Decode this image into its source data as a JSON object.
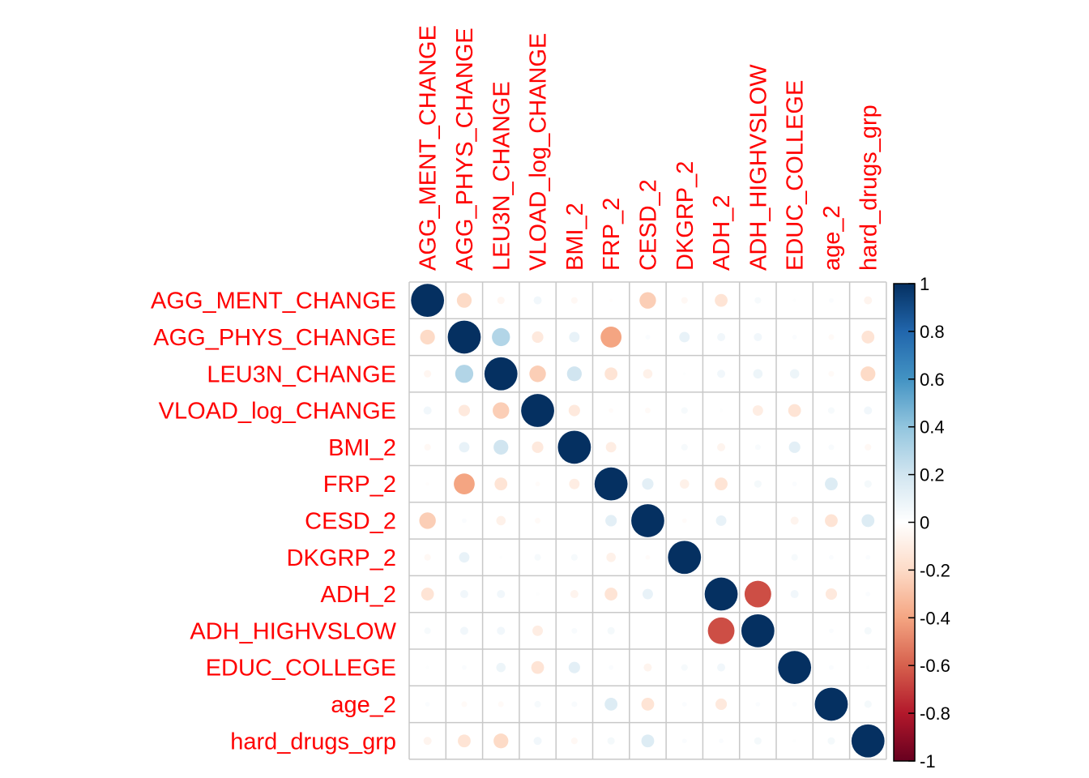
{
  "chart_data": {
    "type": "heatmap",
    "subtype": "correlation-circles",
    "title": "",
    "label_color": "#ff0000",
    "grid_color": "#c8c8c8",
    "variables": [
      "AGG_MENT_CHANGE",
      "AGG_PHYS_CHANGE",
      "LEU3N_CHANGE",
      "VLOAD_log_CHANGE",
      "BMI_2",
      "FRP_2",
      "CESD_2",
      "DKGRP_2",
      "ADH_2",
      "ADH_HIGHVSLOW",
      "EDUC_COLLEGE",
      "age_2",
      "hard_drugs_grp"
    ],
    "matrix": [
      [
        1.0,
        -0.2,
        -0.05,
        0.06,
        -0.04,
        -0.01,
        -0.25,
        -0.04,
        -0.15,
        0.04,
        0.01,
        0.02,
        -0.06
      ],
      [
        -0.2,
        1.0,
        0.3,
        -0.12,
        0.1,
        -0.4,
        0.02,
        0.1,
        0.06,
        0.06,
        0.02,
        -0.03,
        -0.15
      ],
      [
        -0.05,
        0.3,
        1.0,
        -0.25,
        0.2,
        -0.15,
        -0.08,
        0.01,
        0.06,
        0.08,
        0.08,
        -0.03,
        -0.2
      ],
      [
        0.06,
        -0.12,
        -0.25,
        1.0,
        -0.12,
        -0.02,
        -0.03,
        0.04,
        0.01,
        -0.1,
        -0.15,
        0.04,
        0.06
      ],
      [
        -0.04,
        0.1,
        0.2,
        -0.12,
        1.0,
        -0.1,
        0.0,
        0.04,
        -0.06,
        0.03,
        0.12,
        0.03,
        -0.04
      ],
      [
        -0.01,
        -0.4,
        -0.15,
        -0.02,
        -0.1,
        1.0,
        0.12,
        -0.08,
        -0.15,
        0.05,
        0.02,
        0.15,
        0.05
      ],
      [
        -0.25,
        0.02,
        -0.08,
        -0.03,
        0.0,
        0.12,
        1.0,
        -0.02,
        0.1,
        0.0,
        -0.06,
        -0.15,
        0.15
      ],
      [
        -0.04,
        0.1,
        0.01,
        0.04,
        0.04,
        -0.08,
        -0.02,
        1.0,
        0.0,
        0.0,
        0.04,
        0.02,
        0.02
      ],
      [
        -0.15,
        0.06,
        0.06,
        0.01,
        -0.06,
        -0.15,
        0.1,
        0.0,
        1.0,
        -0.65,
        0.06,
        -0.12,
        0.02
      ],
      [
        0.04,
        0.06,
        0.06,
        -0.1,
        0.03,
        0.05,
        0.0,
        0.0,
        -0.65,
        1.0,
        0.0,
        0.02,
        0.05
      ],
      [
        0.01,
        0.02,
        0.08,
        -0.15,
        0.12,
        0.02,
        -0.06,
        0.04,
        0.06,
        0.0,
        1.0,
        0.02,
        0.01
      ],
      [
        0.02,
        -0.03,
        -0.03,
        0.04,
        0.03,
        0.15,
        -0.15,
        0.02,
        -0.12,
        0.02,
        0.02,
        1.0,
        0.05
      ],
      [
        -0.06,
        -0.15,
        -0.2,
        0.06,
        -0.04,
        0.05,
        0.15,
        0.02,
        0.02,
        0.05,
        0.01,
        0.05,
        1.0
      ]
    ],
    "colorbar": {
      "min": -1,
      "max": 1,
      "tick_labels": [
        "1",
        "0.8",
        "0.6",
        "0.4",
        "0.2",
        "0",
        "-0.2",
        "-0.4",
        "-0.6",
        "-0.8",
        "-1"
      ],
      "tick_values": [
        1,
        0.8,
        0.6,
        0.4,
        0.2,
        0,
        -0.2,
        -0.4,
        -0.6,
        -0.8,
        -1
      ],
      "palette": [
        "#67001F",
        "#B2182B",
        "#D6604D",
        "#F4A582",
        "#FDDBC7",
        "#FFFFFF",
        "#D1E5F0",
        "#92C5DE",
        "#4393C3",
        "#2166AC",
        "#053061"
      ]
    }
  }
}
